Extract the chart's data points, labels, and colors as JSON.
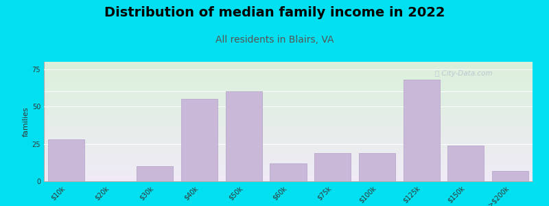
{
  "title": "Distribution of median family income in 2022",
  "subtitle": "All residents in Blairs, VA",
  "ylabel": "families",
  "categories": [
    "$10k",
    "$20k",
    "$30k",
    "$40k",
    "$50k",
    "$60k",
    "$75k",
    "$100k",
    "$125k",
    "$150k",
    ">$200k"
  ],
  "values": [
    28,
    0,
    10,
    55,
    60,
    12,
    19,
    19,
    68,
    24,
    7
  ],
  "bar_color": "#c9b8d8",
  "bar_edge_color": "#b8a8cc",
  "ylim": [
    0,
    80
  ],
  "yticks": [
    0,
    25,
    50,
    75
  ],
  "background_top_color": "#daf0da",
  "background_bottom_color": "#f0eaf6",
  "outer_bg": "#00e0f0",
  "title_fontsize": 14,
  "subtitle_fontsize": 10,
  "ylabel_fontsize": 8,
  "tick_fontsize": 7
}
